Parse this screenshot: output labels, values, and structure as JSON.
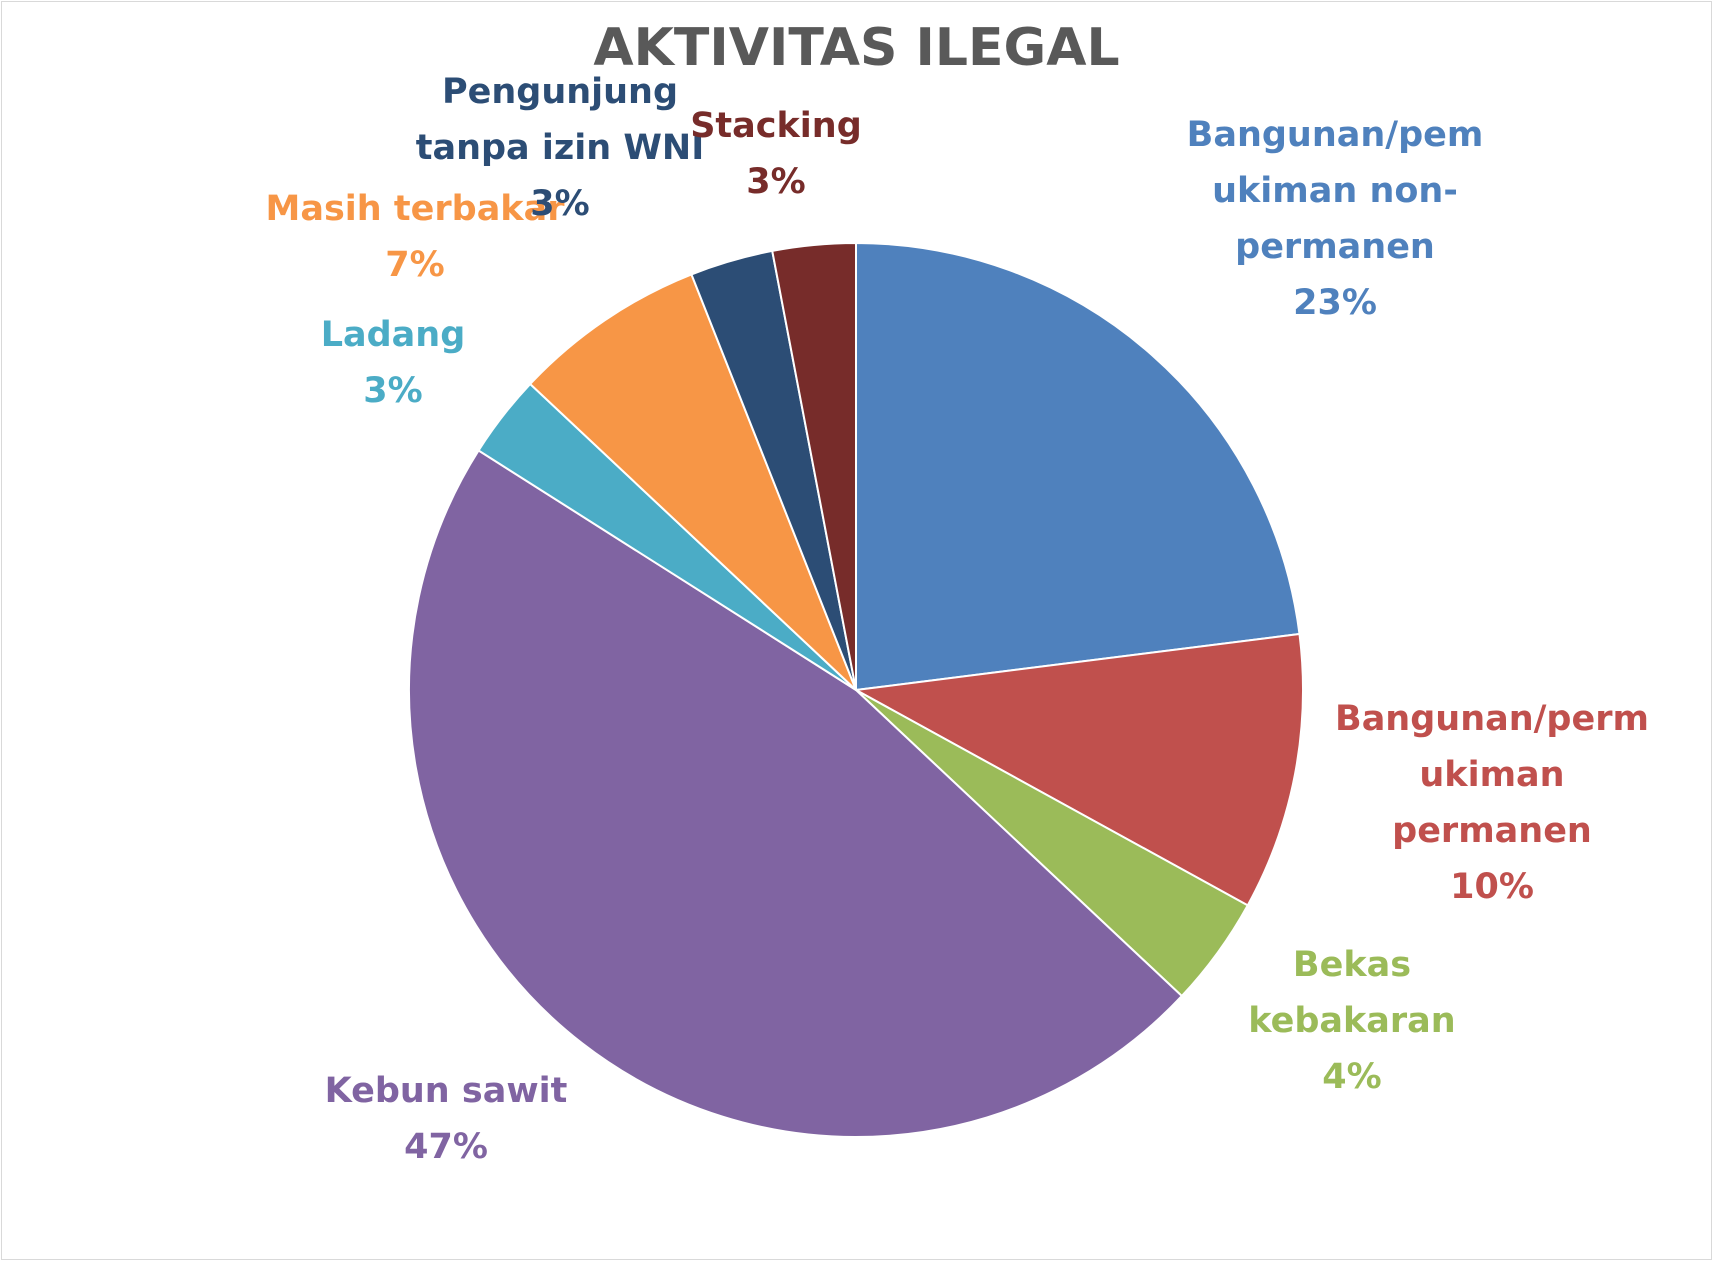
{
  "chart_data": {
    "type": "pie",
    "title": "AKTIVITAS ILEGAL",
    "categories": [
      "Bangunan/pemukiman non-permanen",
      "Bangunan/permukiman permanen",
      "Bekas kebakaran",
      "Kebun sawit",
      "Ladang",
      "Masih terbakar",
      "Pengunjung tanpa izin WNI",
      "Stacking"
    ],
    "values": [
      23,
      10,
      4,
      47,
      3,
      7,
      3,
      3
    ],
    "colors": [
      "#4f81bd",
      "#c0504d",
      "#9bbb59",
      "#8064a2",
      "#4bacc6",
      "#f79646",
      "#2c4d75",
      "#772c2a"
    ],
    "data_labels": [
      {
        "lines": [
          "Bangunan/pem",
          "ukiman non-",
          "permanen",
          "23%"
        ]
      },
      {
        "lines": [
          "Bangunan/perm",
          "ukiman",
          "permanen",
          "10%"
        ]
      },
      {
        "lines": [
          "Bekas",
          "kebakaran",
          "4%"
        ]
      },
      {
        "lines": [
          "Kebun sawit",
          "47%"
        ]
      },
      {
        "lines": [
          "Ladang",
          "3%"
        ]
      },
      {
        "lines": [
          "Masih terbakar",
          "7%"
        ]
      },
      {
        "lines": [
          "Pengunjung",
          "tanpa izin WNI",
          "3%"
        ]
      },
      {
        "lines": [
          "Stacking",
          "3%"
        ]
      }
    ],
    "legend": "none"
  }
}
